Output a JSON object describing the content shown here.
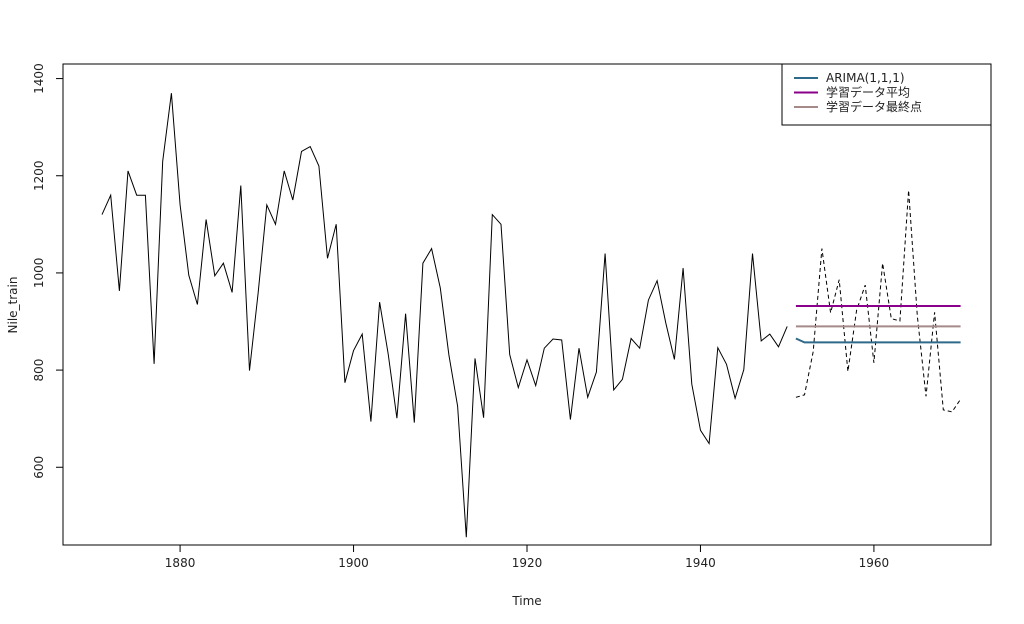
{
  "chart_data": {
    "type": "line",
    "xlabel": "Time",
    "ylabel": "Nile_train",
    "xlim": [
      1866.5,
      1973.5
    ],
    "ylim": [
      440,
      1430
    ],
    "xticks": [
      1880,
      1900,
      1920,
      1940,
      1960
    ],
    "yticks": [
      600,
      800,
      1000,
      1200,
      1400
    ],
    "grid": false,
    "legend_position": "top-right",
    "series": [
      {
        "role": "train",
        "color": "#000000",
        "dash": "solid",
        "x": [
          1871,
          1872,
          1873,
          1874,
          1875,
          1876,
          1877,
          1878,
          1879,
          1880,
          1881,
          1882,
          1883,
          1884,
          1885,
          1886,
          1887,
          1888,
          1889,
          1890,
          1891,
          1892,
          1893,
          1894,
          1895,
          1896,
          1897,
          1898,
          1899,
          1900,
          1901,
          1902,
          1903,
          1904,
          1905,
          1906,
          1907,
          1908,
          1909,
          1910,
          1911,
          1912,
          1913,
          1914,
          1915,
          1916,
          1917,
          1918,
          1919,
          1920,
          1921,
          1922,
          1923,
          1924,
          1925,
          1926,
          1927,
          1928,
          1929,
          1930,
          1931,
          1932,
          1933,
          1934,
          1935,
          1936,
          1937,
          1938,
          1939,
          1940,
          1941,
          1942,
          1943,
          1944,
          1945,
          1946,
          1947,
          1948,
          1949,
          1950
        ],
        "values": [
          1120,
          1160,
          963,
          1210,
          1160,
          1160,
          813,
          1230,
          1370,
          1140,
          995,
          935,
          1110,
          994,
          1020,
          960,
          1180,
          799,
          958,
          1140,
          1100,
          1210,
          1150,
          1250,
          1260,
          1220,
          1030,
          1100,
          774,
          840,
          874,
          694,
          940,
          833,
          701,
          916,
          692,
          1020,
          1050,
          969,
          831,
          726,
          456,
          824,
          702,
          1120,
          1100,
          832,
          764,
          821,
          768,
          845,
          864,
          862,
          698,
          845,
          744,
          796,
          1040,
          759,
          781,
          865,
          845,
          944,
          984,
          897,
          822,
          1010,
          771,
          676,
          649,
          846,
          812,
          742,
          801,
          1040,
          860,
          874,
          848,
          890
        ]
      },
      {
        "role": "test",
        "color": "#000000",
        "dash": "dashed",
        "x": [
          1951,
          1952,
          1953,
          1954,
          1955,
          1956,
          1957,
          1958,
          1959,
          1960,
          1961,
          1962,
          1963,
          1964,
          1965,
          1966,
          1967,
          1968,
          1969,
          1970
        ],
        "values": [
          744,
          749,
          838,
          1050,
          918,
          986,
          797,
          923,
          975,
          815,
          1020,
          906,
          901,
          1170,
          912,
          746,
          919,
          718,
          714,
          740
        ]
      },
      {
        "name": "ARIMA(1,1,1)",
        "color": "#2f6a8a",
        "dash": "solid",
        "x": [
          1951,
          1952,
          1953,
          1954,
          1955,
          1956,
          1957,
          1958,
          1959,
          1960,
          1961,
          1962,
          1963,
          1964,
          1965,
          1966,
          1967,
          1968,
          1969,
          1970
        ],
        "values": [
          865,
          857,
          857,
          857,
          857,
          857,
          857,
          857,
          857,
          857,
          857,
          857,
          857,
          857,
          857,
          857,
          857,
          857,
          857,
          857
        ]
      },
      {
        "name": "学習データ平均",
        "color": "#8b008b",
        "dash": "solid",
        "x": [
          1951,
          1970
        ],
        "values": [
          932,
          932
        ]
      },
      {
        "name": "学習データ最終点",
        "color": "#a68a8a",
        "dash": "solid",
        "x": [
          1951,
          1970
        ],
        "values": [
          890,
          890
        ]
      }
    ]
  }
}
